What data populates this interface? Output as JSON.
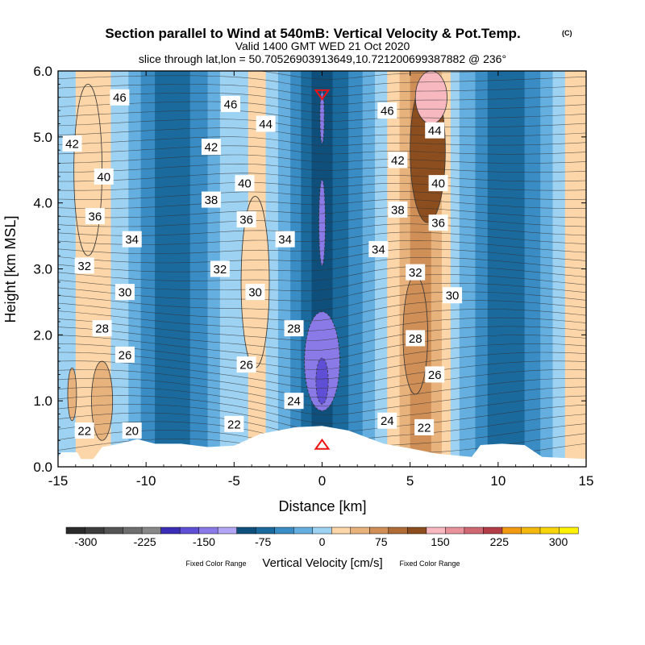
{
  "chart_data": {
    "type": "contour",
    "title": "Section parallel to Wind at 540mB: Vertical Velocity & Pot.Temp.",
    "title_mark": "(C)",
    "subtitle_valid": "Valid 1400 GMT WED 21 Oct 2020",
    "subtitle_slice": "slice through lat,lon = 50.70526903913649,10.721200699387882 @ 236°",
    "xlabel": "Distance [km]",
    "ylabel": "Height [km MSL]",
    "xlim": [
      -15,
      15
    ],
    "ylim": [
      0,
      6
    ],
    "x_ticks": [
      "-15",
      "-10",
      "-5",
      "0",
      "5",
      "10",
      "15"
    ],
    "y_ticks": [
      "0.0",
      "1.0",
      "2.0",
      "3.0",
      "4.0",
      "5.0",
      "6.0"
    ],
    "colorbar": {
      "label": "Vertical Velocity [cm/s]",
      "note_left": "Fixed Color Range",
      "note_right": "Fixed Color Range",
      "ticks": [
        "-300",
        "-225",
        "-150",
        "-75",
        "0",
        "75",
        "150",
        "225",
        "300"
      ],
      "range": [
        -325,
        325
      ],
      "step": 25,
      "colors": [
        "#2b2b2b",
        "#3d3d3d",
        "#555555",
        "#6e6e6e",
        "#888888",
        "#3b2db5",
        "#5f4fd6",
        "#8a7ae8",
        "#b3a6f5",
        "#0e4f7c",
        "#1a6a9e",
        "#3a8cc4",
        "#65afe0",
        "#9ed2f2",
        "#fcd6a8",
        "#e8b27d",
        "#cf8f56",
        "#b06c36",
        "#8c4e1e",
        "#f7b8c0",
        "#e8929b",
        "#d06874",
        "#b23c48",
        "#f29a11",
        "#f5b80e",
        "#f7d50a",
        "#fff200"
      ]
    },
    "vertical_velocity_bands": [
      {
        "x0": -15.0,
        "x1": -14.0,
        "w": 0
      },
      {
        "x0": -14.0,
        "x1": -12.0,
        "w": 25
      },
      {
        "x0": -12.0,
        "x1": -11.0,
        "w": 0
      },
      {
        "x0": -11.0,
        "x1": -10.3,
        "w": -10
      },
      {
        "x0": -10.3,
        "x1": -9.5,
        "w": -40
      },
      {
        "x0": -9.5,
        "x1": -7.5,
        "w": -70
      },
      {
        "x0": -7.5,
        "x1": -6.5,
        "w": -40
      },
      {
        "x0": -6.5,
        "x1": -5.8,
        "w": -10
      },
      {
        "x0": -5.8,
        "x1": -4.2,
        "w": 10
      },
      {
        "x0": -4.2,
        "x1": -3.2,
        "w": 30
      },
      {
        "x0": -3.2,
        "x1": -2.5,
        "w": 10
      },
      {
        "x0": -2.5,
        "x1": -1.8,
        "w": -10
      },
      {
        "x0": -1.8,
        "x1": -1.2,
        "w": -40
      },
      {
        "x0": -1.2,
        "x1": -0.6,
        "w": -70
      },
      {
        "x0": -0.6,
        "x1": 0.6,
        "w": -90
      },
      {
        "x0": 0.6,
        "x1": 1.5,
        "w": -70
      },
      {
        "x0": 1.5,
        "x1": 2.3,
        "w": -40
      },
      {
        "x0": 2.3,
        "x1": 3.0,
        "w": -10
      },
      {
        "x0": 3.0,
        "x1": 3.7,
        "w": 10
      },
      {
        "x0": 3.7,
        "x1": 4.4,
        "w": 40
      },
      {
        "x0": 4.4,
        "x1": 5.0,
        "w": 70
      },
      {
        "x0": 5.0,
        "x1": 6.2,
        "w": 90
      },
      {
        "x0": 6.2,
        "x1": 6.8,
        "w": 70
      },
      {
        "x0": 6.8,
        "x1": 7.3,
        "w": 40
      },
      {
        "x0": 7.3,
        "x1": 7.8,
        "w": 10
      },
      {
        "x0": 7.8,
        "x1": 8.7,
        "w": -10
      },
      {
        "x0": 8.7,
        "x1": 9.4,
        "w": -40
      },
      {
        "x0": 9.4,
        "x1": 11.5,
        "w": -70
      },
      {
        "x0": 11.5,
        "x1": 12.4,
        "w": -40
      },
      {
        "x0": 12.4,
        "x1": 13.1,
        "w": -10
      },
      {
        "x0": 13.1,
        "x1": 13.8,
        "w": 10
      },
      {
        "x0": 13.8,
        "x1": 15.0,
        "w": 30
      }
    ],
    "vertical_velocity_cells": [
      {
        "x": 0,
        "y": 1.6,
        "rx": 1.0,
        "ry": 0.75,
        "w": -150
      },
      {
        "x": 0,
        "y": 1.3,
        "rx": 0.35,
        "ry": 0.35,
        "w": -170
      },
      {
        "x": 0,
        "y": 3.7,
        "rx": 0.18,
        "ry": 0.65,
        "w": -130
      },
      {
        "x": 0,
        "y": 5.3,
        "rx": 0.12,
        "ry": 0.4,
        "w": -130
      },
      {
        "x": 6.0,
        "y": 4.8,
        "rx": 1.0,
        "ry": 1.1,
        "w": 140
      },
      {
        "x": 6.2,
        "y": 5.6,
        "rx": 0.9,
        "ry": 0.4,
        "w": 160
      },
      {
        "x": 5.3,
        "y": 2.0,
        "rx": 0.7,
        "ry": 0.9,
        "w": 80
      },
      {
        "x": -13.3,
        "y": 4.5,
        "rx": 0.8,
        "ry": 1.3,
        "w": 40
      },
      {
        "x": -3.8,
        "y": 2.8,
        "rx": 0.8,
        "ry": 1.3,
        "w": 45
      },
      {
        "x": -12.5,
        "y": 1.0,
        "rx": 0.6,
        "ry": 0.6,
        "w": 55
      },
      {
        "x": -14.2,
        "y": 1.1,
        "rx": 0.25,
        "ry": 0.4,
        "w": 55
      }
    ],
    "pot_temp_levels": [
      "20",
      "22",
      "24",
      "26",
      "28",
      "30",
      "32",
      "34",
      "36",
      "38",
      "40",
      "42",
      "44",
      "46"
    ],
    "pot_temp_labels": [
      {
        "text": "46",
        "x": -11.5,
        "y": 5.6
      },
      {
        "text": "46",
        "x": -5.2,
        "y": 5.5
      },
      {
        "text": "44",
        "x": -3.2,
        "y": 5.2
      },
      {
        "text": "42",
        "x": -14.2,
        "y": 4.9
      },
      {
        "text": "42",
        "x": -6.3,
        "y": 4.85
      },
      {
        "text": "40",
        "x": -12.4,
        "y": 4.4
      },
      {
        "text": "40",
        "x": -4.4,
        "y": 4.3
      },
      {
        "text": "38",
        "x": -6.3,
        "y": 4.05
      },
      {
        "text": "36",
        "x": -12.9,
        "y": 3.8
      },
      {
        "text": "36",
        "x": -4.3,
        "y": 3.75
      },
      {
        "text": "34",
        "x": -10.8,
        "y": 3.45
      },
      {
        "text": "34",
        "x": -2.1,
        "y": 3.45
      },
      {
        "text": "32",
        "x": -13.5,
        "y": 3.05
      },
      {
        "text": "32",
        "x": -5.8,
        "y": 3.0
      },
      {
        "text": "30",
        "x": -11.2,
        "y": 2.65
      },
      {
        "text": "30",
        "x": -3.8,
        "y": 2.65
      },
      {
        "text": "28",
        "x": -12.5,
        "y": 2.1
      },
      {
        "text": "28",
        "x": -1.6,
        "y": 2.1
      },
      {
        "text": "26",
        "x": -11.2,
        "y": 1.7
      },
      {
        "text": "26",
        "x": -4.3,
        "y": 1.55
      },
      {
        "text": "24",
        "x": -1.6,
        "y": 1.0
      },
      {
        "text": "24",
        "x": 3.7,
        "y": 0.7
      },
      {
        "text": "22",
        "x": -13.5,
        "y": 0.55
      },
      {
        "text": "22",
        "x": -5.0,
        "y": 0.65
      },
      {
        "text": "22",
        "x": 5.8,
        "y": 0.6
      },
      {
        "text": "20",
        "x": -10.8,
        "y": 0.55
      },
      {
        "text": "46",
        "x": 3.7,
        "y": 5.4
      },
      {
        "text": "44",
        "x": 6.4,
        "y": 5.1
      },
      {
        "text": "42",
        "x": 4.3,
        "y": 4.65
      },
      {
        "text": "40",
        "x": 6.6,
        "y": 4.3
      },
      {
        "text": "38",
        "x": 4.3,
        "y": 3.9
      },
      {
        "text": "36",
        "x": 6.6,
        "y": 3.7
      },
      {
        "text": "34",
        "x": 3.2,
        "y": 3.3
      },
      {
        "text": "32",
        "x": 5.3,
        "y": 2.95
      },
      {
        "text": "30",
        "x": 7.4,
        "y": 2.6
      },
      {
        "text": "28",
        "x": 5.3,
        "y": 1.95
      },
      {
        "text": "26",
        "x": 6.4,
        "y": 1.4
      }
    ],
    "terrain": [
      {
        "x": -15.0,
        "h": 0.15
      },
      {
        "x": -14.8,
        "h": 0.22
      },
      {
        "x": -13.9,
        "h": 0.22
      },
      {
        "x": -13.7,
        "h": 0.12
      },
      {
        "x": -13.0,
        "h": 0.12
      },
      {
        "x": -12.5,
        "h": 0.3
      },
      {
        "x": -11.5,
        "h": 0.35
      },
      {
        "x": -10.5,
        "h": 0.42
      },
      {
        "x": -9.5,
        "h": 0.35
      },
      {
        "x": -8.0,
        "h": 0.35
      },
      {
        "x": -6.5,
        "h": 0.3
      },
      {
        "x": -5.0,
        "h": 0.32
      },
      {
        "x": -3.5,
        "h": 0.5
      },
      {
        "x": -2.5,
        "h": 0.55
      },
      {
        "x": -1.5,
        "h": 0.6
      },
      {
        "x": 0.0,
        "h": 0.62
      },
      {
        "x": 1.5,
        "h": 0.55
      },
      {
        "x": 2.5,
        "h": 0.45
      },
      {
        "x": 3.5,
        "h": 0.35
      },
      {
        "x": 5.0,
        "h": 0.28
      },
      {
        "x": 6.5,
        "h": 0.2
      },
      {
        "x": 8.5,
        "h": 0.15
      },
      {
        "x": 9.0,
        "h": 0.33
      },
      {
        "x": 10.2,
        "h": 0.35
      },
      {
        "x": 11.5,
        "h": 0.33
      },
      {
        "x": 12.5,
        "h": 0.15
      },
      {
        "x": 15.0,
        "h": 0.12
      }
    ],
    "markers": [
      {
        "type": "triangle-down",
        "x": 0,
        "y": 5.65,
        "color": "#ee1111"
      },
      {
        "type": "triangle-up",
        "x": 0,
        "y": 0.33,
        "color": "#ee1111"
      }
    ]
  }
}
